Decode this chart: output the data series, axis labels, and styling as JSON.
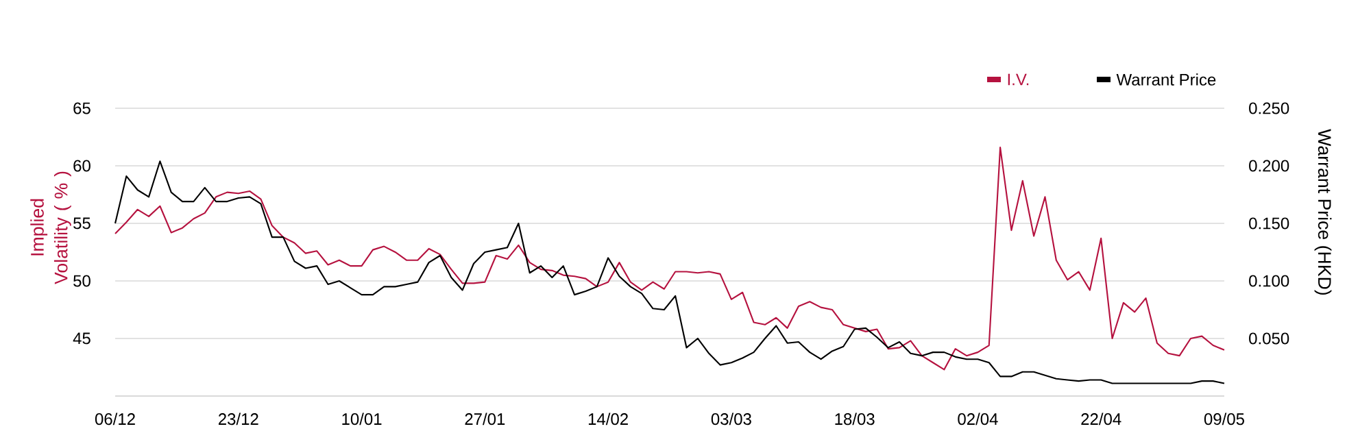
{
  "chart_data": {
    "type": "line",
    "categories": [
      "06/12",
      null,
      null,
      null,
      null,
      null,
      null,
      null,
      null,
      null,
      null,
      "23/12",
      null,
      null,
      null,
      null,
      null,
      null,
      null,
      null,
      null,
      null,
      "10/01",
      null,
      null,
      null,
      null,
      null,
      null,
      null,
      null,
      null,
      null,
      "27/01",
      null,
      null,
      null,
      null,
      null,
      null,
      null,
      null,
      null,
      null,
      "14/02",
      null,
      null,
      null,
      null,
      null,
      null,
      null,
      null,
      null,
      null,
      "03/03",
      null,
      null,
      null,
      null,
      null,
      null,
      null,
      null,
      null,
      null,
      "18/03",
      null,
      null,
      null,
      null,
      null,
      null,
      null,
      null,
      null,
      null,
      "02/04",
      null,
      null,
      null,
      null,
      null,
      null,
      null,
      null,
      null,
      null,
      "22/04",
      null,
      null,
      null,
      null,
      null,
      null,
      null,
      null,
      null,
      null,
      "09/05"
    ],
    "series": [
      {
        "name": "I.V.",
        "color": "#b5123f",
        "values": [
          54.1,
          55.1,
          56.2,
          55.6,
          56.5,
          54.2,
          54.6,
          55.4,
          55.9,
          57.3,
          57.7,
          57.6,
          57.8,
          57.1,
          54.8,
          53.8,
          53.3,
          52.4,
          52.6,
          51.4,
          51.8,
          51.3,
          51.3,
          52.7,
          53.0,
          52.5,
          51.8,
          51.8,
          52.8,
          52.3,
          51.0,
          49.8,
          49.8,
          49.9,
          52.2,
          51.9,
          53.1,
          51.6,
          51.0,
          50.9,
          50.5,
          50.4,
          50.2,
          49.5,
          49.9,
          51.6,
          49.9,
          49.2,
          49.9,
          49.3,
          50.8,
          50.8,
          50.7,
          50.8,
          50.6,
          48.4,
          49.0,
          46.4,
          46.2,
          46.8,
          45.9,
          47.8,
          48.2,
          47.7,
          47.5,
          46.2,
          45.9,
          45.6,
          45.8,
          44.1,
          44.2,
          44.8,
          43.5,
          42.9,
          42.3,
          44.1,
          43.5,
          43.8,
          44.4,
          61.6,
          54.4,
          58.7,
          53.9,
          57.3,
          51.8,
          50.1,
          50.8,
          49.2,
          53.7,
          45.0,
          48.1,
          47.3,
          48.5,
          44.6,
          43.7,
          43.5,
          45.0,
          45.2,
          44.4,
          44.0
        ]
      },
      {
        "name": "Warrant Price",
        "color": "#000000",
        "axis": "y2",
        "values": [
          0.15,
          0.191,
          0.179,
          0.173,
          0.204,
          0.177,
          0.169,
          0.169,
          0.181,
          0.169,
          0.169,
          0.172,
          0.173,
          0.167,
          0.138,
          0.138,
          0.117,
          0.111,
          0.113,
          0.097,
          0.1,
          0.094,
          0.088,
          0.088,
          0.095,
          0.095,
          0.097,
          0.099,
          0.116,
          0.122,
          0.103,
          0.092,
          0.115,
          0.125,
          0.127,
          0.129,
          0.15,
          0.107,
          0.113,
          0.103,
          0.113,
          0.088,
          0.091,
          0.095,
          0.12,
          0.104,
          0.095,
          0.089,
          0.076,
          0.075,
          0.087,
          0.042,
          0.05,
          0.037,
          0.027,
          0.029,
          0.033,
          0.038,
          0.05,
          0.061,
          0.046,
          0.047,
          0.038,
          0.032,
          0.039,
          0.043,
          0.058,
          0.059,
          0.051,
          0.042,
          0.047,
          0.037,
          0.035,
          0.038,
          0.038,
          0.034,
          0.032,
          0.032,
          0.029,
          0.017,
          0.017,
          0.021,
          0.021,
          0.018,
          0.015,
          0.014,
          0.013,
          0.014,
          0.014,
          0.011,
          0.011,
          0.011,
          0.011,
          0.011,
          0.011,
          0.011,
          0.011,
          0.013,
          0.013,
          0.011
        ]
      }
    ],
    "ylabel": "Implied Volatility ( % )",
    "y2label": "Warrant Price (HKD)",
    "ylim": [
      40,
      65
    ],
    "yticks": [
      45,
      50,
      55,
      60,
      65
    ],
    "y2lim": [
      0,
      0.25
    ],
    "y2ticks": [
      {
        "value": 0.05,
        "label": "0.050"
      },
      {
        "value": 0.1,
        "label": "0.100"
      },
      {
        "value": 0.15,
        "label": "0.150"
      },
      {
        "value": 0.2,
        "label": "0.200"
      },
      {
        "value": 0.25,
        "label": "0.250"
      }
    ],
    "grid": "y",
    "legend": "top right"
  }
}
